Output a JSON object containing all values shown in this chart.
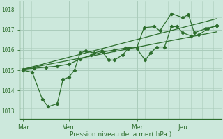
{
  "background_color": "#cce8dc",
  "grid_color": "#aaccbb",
  "line_color": "#2d6e2d",
  "ylabel": "Pression niveau de la mer( hPa )",
  "ylim": [
    1012.6,
    1018.4
  ],
  "yticks": [
    1013,
    1014,
    1015,
    1016,
    1017,
    1018
  ],
  "xtick_labels": [
    "Mar",
    "Ven",
    "Mer",
    "Jeu"
  ],
  "xtick_positions": [
    0,
    2,
    5,
    7
  ],
  "xlim": [
    -0.15,
    8.7
  ],
  "series1_x": [
    0,
    0.4,
    0.85,
    1.1,
    1.5,
    1.75,
    2.0,
    2.25,
    2.5,
    2.75,
    3.1,
    3.45,
    3.75,
    4.0,
    4.35,
    4.6,
    5.0,
    5.35,
    5.6,
    5.85,
    6.2,
    6.5,
    6.75,
    7.0,
    7.35,
    7.7,
    8.1,
    8.5
  ],
  "series1_y": [
    1015.0,
    1014.9,
    1013.55,
    1013.2,
    1013.35,
    1014.55,
    1014.65,
    1015.0,
    1015.85,
    1015.95,
    1015.85,
    1015.95,
    1015.5,
    1015.5,
    1015.75,
    1016.05,
    1016.05,
    1015.5,
    1015.85,
    1016.15,
    1016.15,
    1017.15,
    1017.15,
    1016.85,
    1016.7,
    1016.75,
    1017.05,
    1017.2
  ],
  "series2_x": [
    0,
    0.5,
    1.0,
    1.5,
    2.0,
    2.5,
    3.0,
    3.5,
    4.0,
    4.5,
    5.0,
    5.3,
    5.75,
    6.0,
    6.5,
    7.0,
    7.25,
    7.5,
    8.0,
    8.5
  ],
  "series2_y": [
    1015.05,
    1015.1,
    1015.15,
    1015.2,
    1015.3,
    1015.55,
    1015.75,
    1015.9,
    1016.0,
    1016.1,
    1016.15,
    1017.1,
    1017.15,
    1016.95,
    1017.8,
    1017.6,
    1017.75,
    1016.85,
    1017.05,
    1017.2
  ],
  "trend1_x": [
    0,
    8.5
  ],
  "trend1_y": [
    1015.05,
    1016.9
  ],
  "trend2_x": [
    0,
    8.5
  ],
  "trend2_y": [
    1015.05,
    1017.55
  ],
  "vline_positions": [
    0,
    2,
    5,
    7
  ]
}
